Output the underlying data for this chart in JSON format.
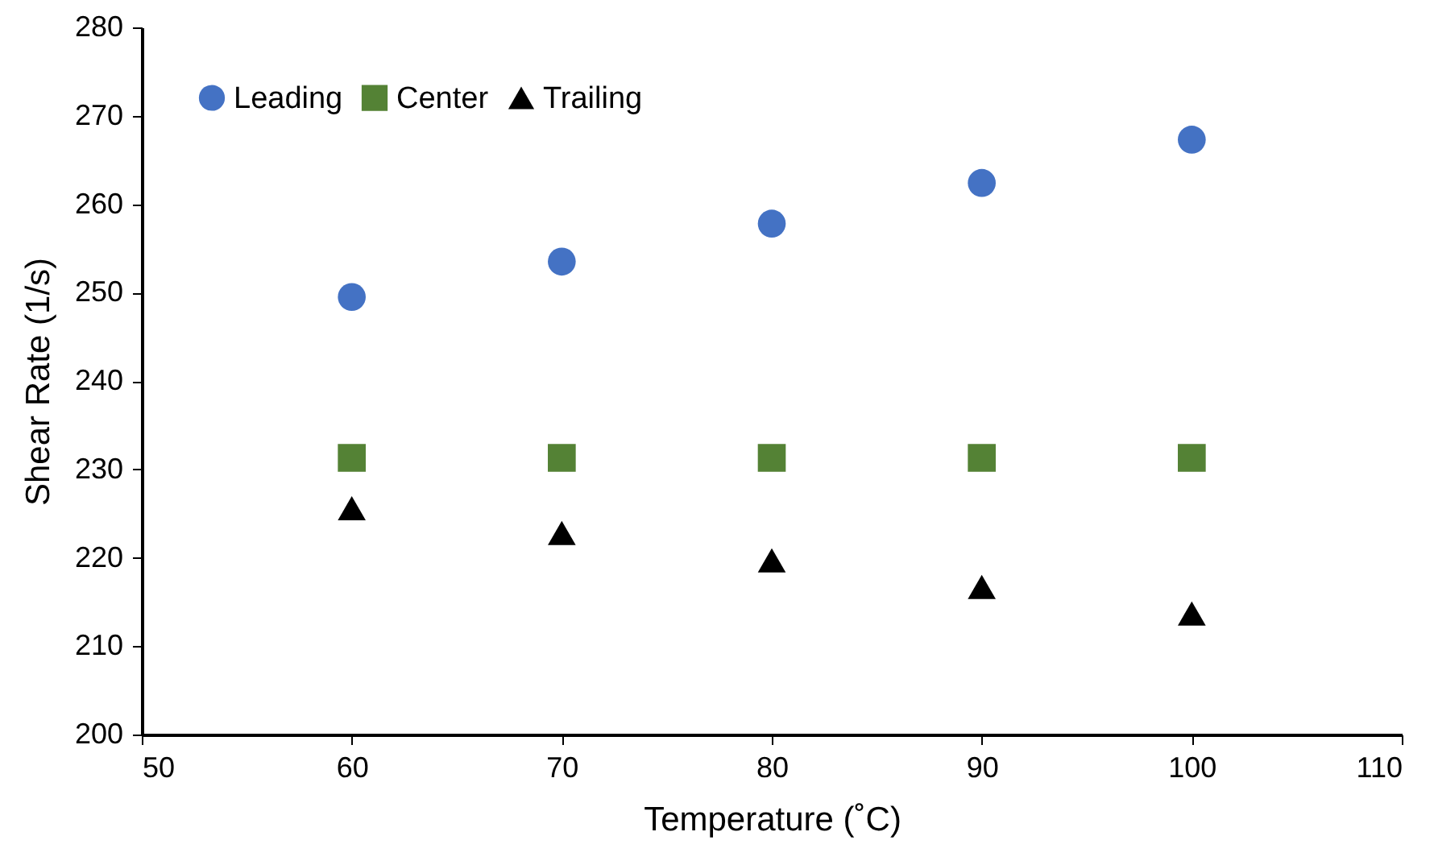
{
  "chart_data": {
    "type": "scatter",
    "xlabel": "Temperature (˚C)",
    "ylabel": "Shear Rate (1/s)",
    "x": [
      60,
      70,
      80,
      90,
      100
    ],
    "series": [
      {
        "name": "Leading",
        "color": "#4472c4",
        "marker": "circle",
        "values": [
          249.5,
          253.5,
          257.8,
          262.4,
          267.3
        ]
      },
      {
        "name": "Center",
        "color": "#548235",
        "marker": "square",
        "values": [
          231.3,
          231.3,
          231.3,
          231.3,
          231.3
        ]
      },
      {
        "name": "Trailing",
        "color": "#000000",
        "marker": "triangle",
        "values": [
          225.6,
          222.8,
          219.7,
          216.7,
          213.7
        ]
      }
    ],
    "xlim": [
      50,
      110
    ],
    "xticks": [
      50,
      60,
      70,
      80,
      90,
      100,
      110
    ],
    "ylim": [
      200,
      280
    ],
    "yticks": [
      200,
      210,
      220,
      230,
      240,
      250,
      260,
      270,
      280
    ],
    "grid": false,
    "legend": "top left"
  }
}
